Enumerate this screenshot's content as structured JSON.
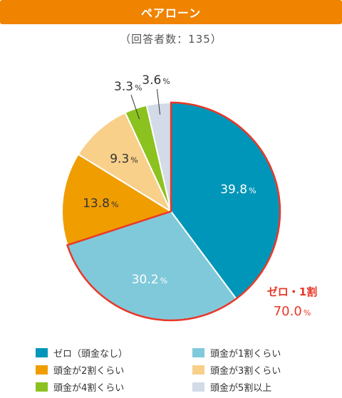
{
  "header": {
    "title": "ペアローン"
  },
  "subtitle": "（回答者数：135）",
  "chart_data": {
    "type": "pie",
    "title": "ペアローン",
    "subtitle": "（回答者数：135）",
    "unit": "%",
    "start_angle": "12 o'clock, clockwise",
    "slices": [
      {
        "name": "ゼロ（頭金なし）",
        "value": 39.8,
        "label": "39.8",
        "color": "#0096b9"
      },
      {
        "name": "頭金が1割くらい",
        "value": 30.2,
        "label": "30.2",
        "color": "#80c9da"
      },
      {
        "name": "頭金が2割くらい",
        "value": 13.8,
        "label": "13.8",
        "color": "#f09d00"
      },
      {
        "name": "頭金が3割くらい",
        "value": 9.3,
        "label": "9.3",
        "color": "#f8d08a"
      },
      {
        "name": "頭金が4割くらい",
        "value": 3.3,
        "label": "3.3",
        "color": "#8cc21f"
      },
      {
        "name": "頭金が5割以上",
        "value": 3.6,
        "label": "3.6",
        "color": "#d3dbe8"
      }
    ],
    "highlight": {
      "label": "ゼロ・1割",
      "value": "70.0",
      "unit": "%",
      "slices": [
        "ゼロ（頭金なし）",
        "頭金が1割くらい"
      ],
      "color": "#e83828"
    },
    "legend": {
      "position": "bottom",
      "columns": 2
    }
  }
}
